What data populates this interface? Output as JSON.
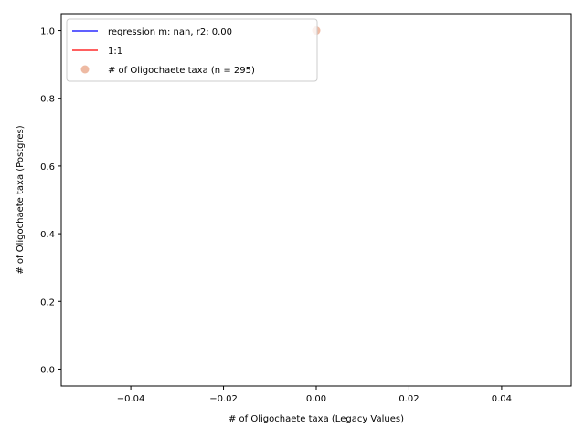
{
  "chart_data": {
    "type": "scatter",
    "xlabel": "# of Oligochaete taxa (Legacy Values)",
    "ylabel": "# of Oligochaete taxa (Postgres)",
    "xlim": [
      -0.055,
      0.055
    ],
    "ylim": [
      -0.05,
      1.05
    ],
    "xticks": [
      -0.04,
      -0.02,
      0.0,
      0.02,
      0.04
    ],
    "xtick_labels": [
      "−0.04",
      "−0.02",
      "0.00",
      "0.02",
      "0.04"
    ],
    "yticks": [
      0.0,
      0.2,
      0.4,
      0.6,
      0.8,
      1.0
    ],
    "ytick_labels": [
      "0.0",
      "0.2",
      "0.4",
      "0.6",
      "0.8",
      "1.0"
    ],
    "grid": false,
    "legend_position": "top-left",
    "series": [
      {
        "name": "regression m: nan, r2: 0.00",
        "kind": "line",
        "color": "#0000ff",
        "points": []
      },
      {
        "name": "1:1",
        "kind": "line",
        "color": "#ff0000",
        "points": []
      },
      {
        "name": "# of Oligochaete taxa (n = 295)",
        "kind": "scatter",
        "color": "#e8a384",
        "points": [
          [
            0.0,
            1.0
          ]
        ]
      }
    ]
  }
}
